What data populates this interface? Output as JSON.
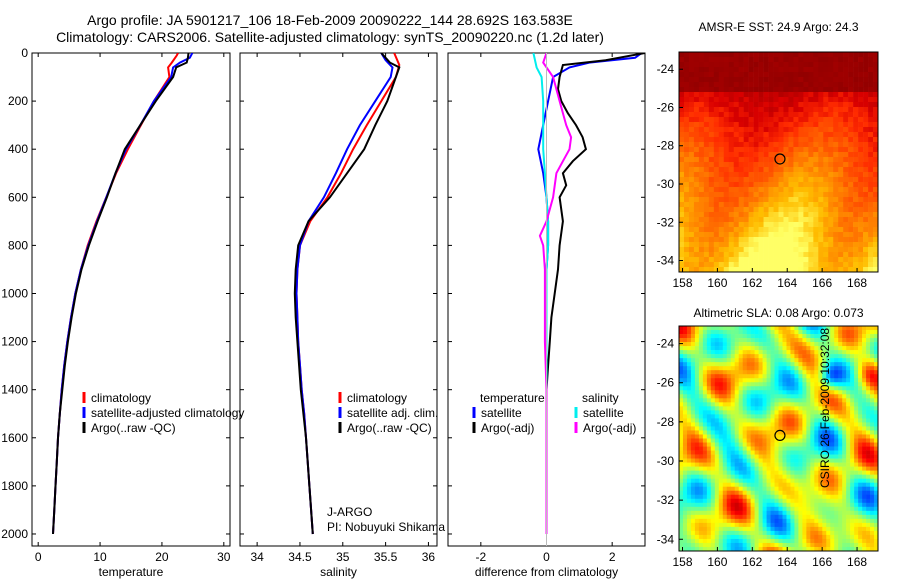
{
  "header": {
    "line1": "Argo profile: JA 5901217_106 18-Feb-2009 20090222_144 28.692S 163.583E",
    "line2": "Climatology: CARS2006. Satellite-adjusted climatology: synTS_20090220.nc (1.2d later)"
  },
  "credit": "CSIRO 26-Feb-2009 10:32:08",
  "colors": {
    "climatology": "#ff0000",
    "satellite": "#0000ff",
    "argo": "#000000",
    "salinity_satellite": "#00eeee",
    "salinity_argo": "#ff00ff"
  },
  "chart_data": [
    {
      "id": "temperature",
      "type": "line",
      "xlabel": "temperature",
      "ylabel": "",
      "xlim": [
        -1,
        31
      ],
      "ylim": [
        2050,
        0
      ],
      "xticks": [
        0,
        10,
        20,
        30
      ],
      "yticks": [
        0,
        200,
        400,
        600,
        800,
        1000,
        1200,
        1400,
        1600,
        1800,
        2000
      ],
      "legend": {
        "position": "lower-center",
        "entries": [
          "climatology",
          "satellite-adjusted climatology",
          "Argo(..raw -QC)"
        ]
      },
      "series": [
        {
          "name": "climatology",
          "color": "#ff0000",
          "points": [
            [
              22.6,
              0
            ],
            [
              22.4,
              10
            ],
            [
              21.6,
              40
            ],
            [
              21.0,
              60
            ],
            [
              21.2,
              100
            ],
            [
              18.7,
              200
            ],
            [
              16.6,
              300
            ],
            [
              14.5,
              400
            ],
            [
              12.6,
              500
            ],
            [
              11.0,
              600
            ],
            [
              9.4,
              700
            ],
            [
              8.0,
              800
            ],
            [
              6.9,
              900
            ],
            [
              6.0,
              1000
            ],
            [
              5.3,
              1100
            ],
            [
              4.7,
              1200
            ],
            [
              4.2,
              1300
            ],
            [
              3.8,
              1400
            ],
            [
              3.5,
              1500
            ],
            [
              3.2,
              1600
            ],
            [
              3.0,
              1700
            ],
            [
              2.8,
              1800
            ],
            [
              2.6,
              1900
            ],
            [
              2.4,
              2000
            ]
          ]
        },
        {
          "name": "satellite-adjusted climatology",
          "color": "#0000ff",
          "points": [
            [
              24.9,
              0
            ],
            [
              24.5,
              20
            ],
            [
              22.9,
              40
            ],
            [
              21.8,
              60
            ],
            [
              21.5,
              100
            ],
            [
              18.7,
              200
            ],
            [
              16.5,
              300
            ],
            [
              14.2,
              400
            ],
            [
              12.5,
              500
            ],
            [
              11.0,
              600
            ],
            [
              9.5,
              700
            ],
            [
              8.1,
              800
            ],
            [
              6.9,
              900
            ],
            [
              6.0,
              1000
            ],
            [
              5.3,
              1100
            ],
            [
              4.7,
              1200
            ],
            [
              4.2,
              1300
            ],
            [
              3.8,
              1400
            ],
            [
              3.5,
              1500
            ],
            [
              3.2,
              1600
            ],
            [
              3.0,
              1700
            ],
            [
              2.8,
              1800
            ],
            [
              2.6,
              1900
            ],
            [
              2.4,
              2000
            ]
          ]
        },
        {
          "name": "Argo(..raw -QC)",
          "color": "#000000",
          "points": [
            [
              24.3,
              0
            ],
            [
              24.2,
              20
            ],
            [
              24.0,
              40
            ],
            [
              22.3,
              60
            ],
            [
              21.8,
              100
            ],
            [
              19.0,
              200
            ],
            [
              16.5,
              300
            ],
            [
              14.0,
              400
            ],
            [
              12.5,
              500
            ],
            [
              11.1,
              600
            ],
            [
              9.6,
              700
            ],
            [
              8.2,
              800
            ],
            [
              7.0,
              900
            ],
            [
              6.1,
              1000
            ],
            [
              5.4,
              1100
            ],
            [
              4.8,
              1200
            ],
            [
              4.3,
              1300
            ],
            [
              3.9,
              1400
            ],
            [
              3.5,
              1500
            ],
            [
              3.2,
              1600
            ],
            [
              3.0,
              1700
            ],
            [
              2.8,
              1800
            ],
            [
              2.6,
              1900
            ],
            [
              2.4,
              2000
            ]
          ]
        }
      ]
    },
    {
      "id": "salinity",
      "type": "line",
      "xlabel": "salinity",
      "ylabel": "",
      "xlim": [
        33.8,
        36.1
      ],
      "ylim": [
        2050,
        0
      ],
      "xticks": [
        34,
        34.5,
        35,
        35.5,
        36
      ],
      "yticks": [
        0,
        200,
        400,
        600,
        800,
        1000,
        1200,
        1400,
        1600,
        1800,
        2000
      ],
      "legend": {
        "position": "lower-center",
        "entries": [
          "climatology",
          "satellite adj. clim.",
          "Argo(..raw -QC)"
        ]
      },
      "annotation": [
        "J-ARGO",
        "PI: Nobuyuki Shikama"
      ],
      "series": [
        {
          "name": "climatology",
          "color": "#ff0000",
          "points": [
            [
              35.6,
              0
            ],
            [
              35.66,
              50
            ],
            [
              35.62,
              100
            ],
            [
              35.45,
              200
            ],
            [
              35.28,
              300
            ],
            [
              35.12,
              400
            ],
            [
              34.98,
              500
            ],
            [
              34.82,
              600
            ],
            [
              34.62,
              700
            ],
            [
              34.5,
              800
            ],
            [
              34.47,
              900
            ],
            [
              34.46,
              1000
            ],
            [
              34.47,
              1100
            ],
            [
              34.48,
              1200
            ],
            [
              34.5,
              1300
            ],
            [
              34.52,
              1400
            ],
            [
              34.55,
              1500
            ],
            [
              34.57,
              1600
            ],
            [
              34.59,
              1700
            ],
            [
              34.61,
              1800
            ],
            [
              34.63,
              1900
            ],
            [
              34.65,
              2000
            ]
          ]
        },
        {
          "name": "satellite adj. clim.",
          "color": "#0000ff",
          "points": [
            [
              35.45,
              0
            ],
            [
              35.5,
              30
            ],
            [
              35.58,
              60
            ],
            [
              35.56,
              100
            ],
            [
              35.38,
              200
            ],
            [
              35.2,
              300
            ],
            [
              35.05,
              400
            ],
            [
              34.92,
              500
            ],
            [
              34.78,
              600
            ],
            [
              34.6,
              700
            ],
            [
              34.5,
              800
            ],
            [
              34.47,
              900
            ],
            [
              34.46,
              1000
            ],
            [
              34.47,
              1100
            ],
            [
              34.48,
              1200
            ],
            [
              34.5,
              1300
            ],
            [
              34.52,
              1400
            ],
            [
              34.55,
              1500
            ],
            [
              34.57,
              1600
            ],
            [
              34.59,
              1700
            ],
            [
              34.61,
              1800
            ],
            [
              34.63,
              1900
            ],
            [
              34.65,
              2000
            ]
          ]
        },
        {
          "name": "Argo(..raw -QC)",
          "color": "#000000",
          "points": [
            [
              35.45,
              0
            ],
            [
              35.55,
              40
            ],
            [
              35.66,
              60
            ],
            [
              35.62,
              100
            ],
            [
              35.52,
              200
            ],
            [
              35.38,
              300
            ],
            [
              35.25,
              400
            ],
            [
              35.05,
              500
            ],
            [
              34.85,
              600
            ],
            [
              34.6,
              700
            ],
            [
              34.48,
              800
            ],
            [
              34.45,
              900
            ],
            [
              34.44,
              1000
            ],
            [
              34.45,
              1100
            ],
            [
              34.47,
              1200
            ],
            [
              34.49,
              1300
            ],
            [
              34.51,
              1400
            ],
            [
              34.54,
              1500
            ],
            [
              34.57,
              1600
            ],
            [
              34.59,
              1700
            ],
            [
              34.61,
              1800
            ],
            [
              34.63,
              1900
            ],
            [
              34.65,
              2000
            ]
          ]
        }
      ]
    },
    {
      "id": "difference",
      "type": "line",
      "xlabel": "difference from climatology",
      "ylabel": "",
      "xlim": [
        -3,
        3
      ],
      "ylim": [
        2050,
        0
      ],
      "xticks": [
        -2,
        0,
        2
      ],
      "yticks": [
        0,
        200,
        400,
        600,
        800,
        1000,
        1200,
        1400,
        1600,
        1800,
        2000
      ],
      "legend": {
        "position": "lower-center",
        "columns": [
          [
            "temperature",
            "satellite",
            "Argo(-adj)"
          ],
          [
            "salinity",
            "satellite",
            "Argo(-adj)"
          ]
        ]
      },
      "series": [
        {
          "name": "temperature satellite",
          "color": "#0000ff",
          "points": [
            [
              2.9,
              0
            ],
            [
              2.7,
              20
            ],
            [
              1.3,
              40
            ],
            [
              0.7,
              60
            ],
            [
              0.2,
              100
            ],
            [
              0.05,
              200
            ],
            [
              -0.1,
              300
            ],
            [
              -0.25,
              400
            ],
            [
              -0.1,
              500
            ],
            [
              0.0,
              600
            ],
            [
              0.05,
              700
            ],
            [
              0.05,
              800
            ],
            [
              0.0,
              900
            ],
            [
              0.0,
              1000
            ],
            [
              0.0,
              1200
            ],
            [
              0.0,
              1400
            ],
            [
              0.0,
              1600
            ],
            [
              0.0,
              1800
            ],
            [
              0.0,
              2000
            ]
          ]
        },
        {
          "name": "temperature Argo(-adj)",
          "color": "#000000",
          "points": [
            [
              3,
              0
            ],
            [
              1.8,
              30
            ],
            [
              0.5,
              50
            ],
            [
              0.4,
              100
            ],
            [
              0.35,
              150
            ],
            [
              0.45,
              200
            ],
            [
              0.65,
              250
            ],
            [
              0.9,
              300
            ],
            [
              1.1,
              350
            ],
            [
              1.2,
              400
            ],
            [
              0.8,
              450
            ],
            [
              0.5,
              500
            ],
            [
              0.6,
              550
            ],
            [
              0.4,
              600
            ],
            [
              0.5,
              700
            ],
            [
              0.4,
              800
            ],
            [
              0.35,
              900
            ],
            [
              0.25,
              1000
            ],
            [
              0.15,
              1100
            ],
            [
              0.1,
              1200
            ],
            [
              0.05,
              1300
            ],
            [
              0.0,
              1400
            ],
            [
              0.0,
              1600
            ],
            [
              0.0,
              1800
            ],
            [
              0.0,
              2000
            ]
          ]
        },
        {
          "name": "salinity satellite",
          "color": "#00eeee",
          "points": [
            [
              -0.4,
              0
            ],
            [
              -0.3,
              60
            ],
            [
              -0.15,
              100
            ],
            [
              -0.1,
              200
            ],
            [
              -0.1,
              300
            ],
            [
              -0.1,
              400
            ],
            [
              -0.05,
              500
            ],
            [
              0.0,
              600
            ],
            [
              0.05,
              700
            ],
            [
              0.05,
              800
            ],
            [
              0.0,
              900
            ],
            [
              0.0,
              1000
            ],
            [
              0.0,
              1200
            ],
            [
              0.0,
              1400
            ],
            [
              0.0,
              1600
            ],
            [
              0.0,
              1800
            ],
            [
              0.0,
              2000
            ]
          ]
        },
        {
          "name": "salinity Argo(-adj)",
          "color": "#ff00ff",
          "points": [
            [
              0.0,
              0
            ],
            [
              -0.1,
              40
            ],
            [
              0.2,
              100
            ],
            [
              0.4,
              200
            ],
            [
              0.6,
              300
            ],
            [
              0.75,
              350
            ],
            [
              0.7,
              400
            ],
            [
              0.5,
              450
            ],
            [
              0.3,
              500
            ],
            [
              0.2,
              600
            ],
            [
              0.0,
              700
            ],
            [
              -0.2,
              760
            ],
            [
              -0.1,
              800
            ],
            [
              -0.05,
              900
            ],
            [
              -0.05,
              1000
            ],
            [
              -0.05,
              1100
            ],
            [
              -0.05,
              1200
            ],
            [
              0.0,
              1400
            ],
            [
              0.0,
              1600
            ],
            [
              0.0,
              1800
            ],
            [
              0.0,
              2000
            ]
          ]
        }
      ]
    },
    {
      "id": "sst-map",
      "type": "heatmap",
      "title": "AMSR-E SST: 24.9 Argo: 24.3",
      "xlim": [
        157.8,
        169.2
      ],
      "ylim": [
        -34.6,
        -23.1
      ],
      "xticks": [
        158,
        160,
        162,
        164,
        166,
        168
      ],
      "yticks": [
        -24,
        -26,
        -28,
        -30,
        -32,
        -34
      ],
      "marker": {
        "lon": 163.583,
        "lat": -28.692
      }
    },
    {
      "id": "sla-map",
      "type": "heatmap",
      "title": "Altimetric SLA: 0.08 Argo: 0.073",
      "xlim": [
        157.8,
        169.2
      ],
      "ylim": [
        -34.6,
        -23.1
      ],
      "xticks": [
        158,
        160,
        162,
        164,
        166,
        168
      ],
      "yticks": [
        -24,
        -26,
        -28,
        -30,
        -32,
        -34
      ],
      "marker": {
        "lon": 163.583,
        "lat": -28.692
      }
    }
  ]
}
